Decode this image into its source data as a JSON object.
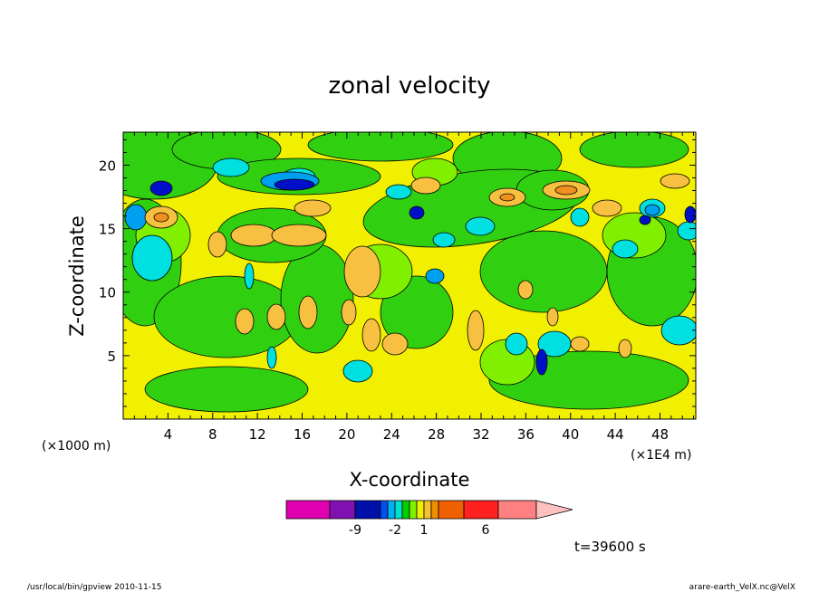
{
  "chart_data": {
    "type": "heatmap",
    "title": "zonal velocity",
    "xlabel": "X-coordinate",
    "ylabel": "Z-coordinate",
    "x_unit_left": "(×1000 m)",
    "x_unit_right": "(×1E4 m)",
    "x_ticks": [
      4,
      8,
      12,
      16,
      20,
      24,
      28,
      32,
      36,
      40,
      44,
      48
    ],
    "x_tick_labels": [
      "4",
      "8",
      "12",
      "16",
      "20",
      "24",
      "28",
      "32",
      "36",
      "40",
      "44",
      "48"
    ],
    "xlim": [
      0,
      51.2
    ],
    "y_ticks": [
      5,
      10,
      15,
      20
    ],
    "y_tick_labels": [
      "5",
      "10",
      "15",
      "20"
    ],
    "ylim": [
      0,
      22.6
    ],
    "colorbar": {
      "colors": [
        "#e000b0",
        "#8010b0",
        "#0010a8",
        "#0050f0",
        "#00b0f0",
        "#00e0d0",
        "#00d000",
        "#80f000",
        "#f0f000",
        "#f8c030",
        "#f09000",
        "#f06000",
        "#ff2020",
        "#ff8080",
        "#ffc0c0"
      ],
      "tick_labels": [
        "-9",
        "-2",
        "1",
        "6"
      ],
      "tick_values": [
        -9,
        -2,
        1,
        6
      ]
    },
    "field_colors": {
      "yellow": "#f0f000",
      "green": "#30d010",
      "light_green": "#80f000",
      "cyan": "#00e0e0",
      "light_blue": "#00a0f0",
      "blue": "#0010c8",
      "orange": "#f8c040",
      "dark_orange": "#f09020",
      "contour": "#000000"
    },
    "annotations": {
      "time": "t=39600 s",
      "footer_left": "/usr/local/bin/gpview  2010-11-15",
      "footer_right": "arare-earth_VelX.nc@VelX"
    }
  }
}
